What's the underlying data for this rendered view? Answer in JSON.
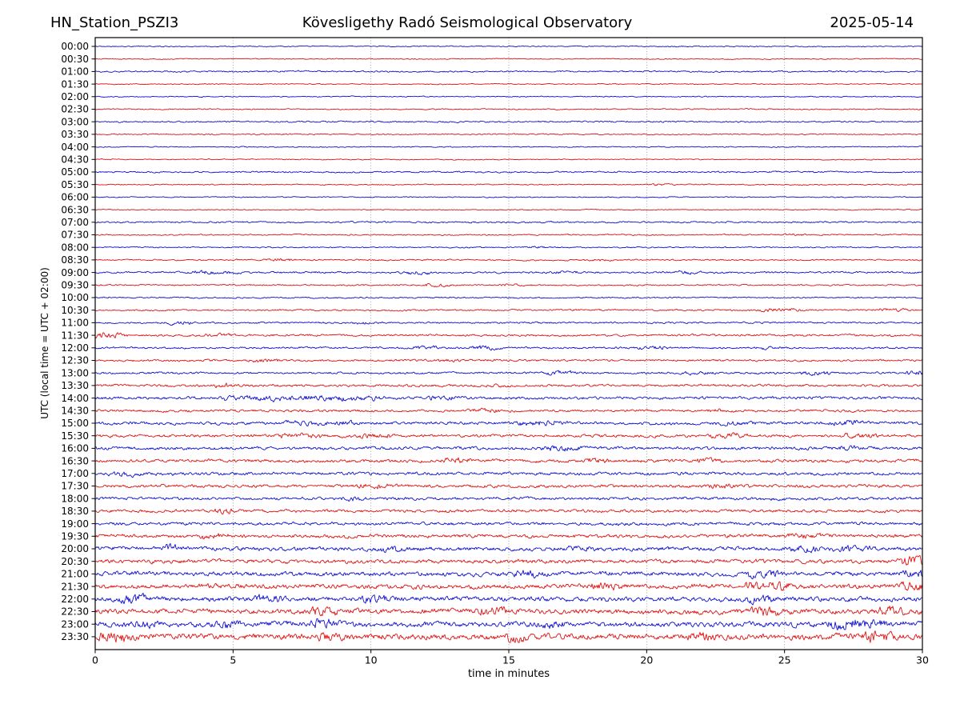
{
  "header": {
    "station": "HN_Station_PSZI3",
    "observatory": "Kövesligethy Radó Seismological Observatory",
    "date": "2025-05-14"
  },
  "chart_data": {
    "type": "line",
    "subtype": "helicorder-drum-plot",
    "title": "Kövesligethy Radó Seismological Observatory",
    "station": "HN_Station_PSZI3",
    "date": "2025-05-14",
    "xlabel": "time in minutes",
    "ylabel": "UTC (local time = UTC + 02:00)",
    "xlim": [
      0,
      30
    ],
    "x_ticks": [
      0,
      5,
      10,
      15,
      20,
      25,
      30
    ],
    "grid": "vertical-dotted-every-5-min",
    "legend": "none",
    "row_interval_minutes": 30,
    "trace_colors": {
      "blue": "#1010d0",
      "red": "#e01212"
    },
    "grid_color": "#8a8a8a",
    "frame_color": "#000000",
    "rows": [
      {
        "label": "00:00",
        "color": "blue",
        "amp": 0.5,
        "bursts": []
      },
      {
        "label": "00:30",
        "color": "red",
        "amp": 0.5,
        "bursts": []
      },
      {
        "label": "01:00",
        "color": "blue",
        "amp": 0.75,
        "bursts": []
      },
      {
        "label": "01:30",
        "color": "red",
        "amp": 0.5,
        "bursts": []
      },
      {
        "label": "02:00",
        "color": "blue",
        "amp": 0.5,
        "bursts": []
      },
      {
        "label": "02:30",
        "color": "red",
        "amp": 0.55,
        "bursts": []
      },
      {
        "label": "03:00",
        "color": "blue",
        "amp": 0.75,
        "bursts": []
      },
      {
        "label": "03:30",
        "color": "red",
        "amp": 0.6,
        "bursts": []
      },
      {
        "label": "04:00",
        "color": "blue",
        "amp": 0.5,
        "bursts": []
      },
      {
        "label": "04:30",
        "color": "red",
        "amp": 0.5,
        "bursts": []
      },
      {
        "label": "05:00",
        "color": "blue",
        "amp": 0.75,
        "bursts": []
      },
      {
        "label": "05:30",
        "color": "red",
        "amp": 0.55,
        "bursts": [
          [
            20.3,
            20.7,
            2.0
          ]
        ]
      },
      {
        "label": "06:00",
        "color": "blue",
        "amp": 0.5,
        "bursts": []
      },
      {
        "label": "06:30",
        "color": "red",
        "amp": 0.5,
        "bursts": []
      },
      {
        "label": "07:00",
        "color": "blue",
        "amp": 0.8,
        "bursts": []
      },
      {
        "label": "07:30",
        "color": "red",
        "amp": 0.6,
        "bursts": [
          [
            25.0,
            25.6,
            1.8
          ]
        ]
      },
      {
        "label": "08:00",
        "color": "blue",
        "amp": 0.6,
        "bursts": [
          [
            15.6,
            16.0,
            1.8
          ]
        ]
      },
      {
        "label": "08:30",
        "color": "red",
        "amp": 0.7,
        "bursts": [
          [
            6.2,
            7.0,
            2.2
          ],
          [
            17.8,
            18.5,
            1.6
          ]
        ]
      },
      {
        "label": "09:00",
        "color": "blue",
        "amp": 0.9,
        "bursts": [
          [
            3.6,
            5.0,
            2.2
          ],
          [
            11.2,
            12.0,
            2.2
          ],
          [
            16.6,
            17.4,
            1.8
          ],
          [
            21.0,
            21.8,
            2.3
          ]
        ]
      },
      {
        "label": "09:30",
        "color": "red",
        "amp": 0.7,
        "bursts": [
          [
            12.0,
            12.6,
            2.6
          ],
          [
            14.8,
            15.3,
            1.8
          ]
        ]
      },
      {
        "label": "10:00",
        "color": "blue",
        "amp": 0.7,
        "bursts": []
      },
      {
        "label": "10:30",
        "color": "red",
        "amp": 0.8,
        "bursts": [
          [
            24.2,
            25.4,
            2.3
          ],
          [
            28.5,
            29.4,
            2.3
          ]
        ]
      },
      {
        "label": "11:00",
        "color": "blue",
        "amp": 0.85,
        "bursts": [
          [
            2.6,
            3.3,
            2.2
          ],
          [
            9.3,
            9.9,
            1.7
          ]
        ]
      },
      {
        "label": "11:30",
        "color": "red",
        "amp": 1.0,
        "bursts": [
          [
            0.0,
            0.8,
            2.8
          ],
          [
            4.0,
            4.7,
            2.0
          ]
        ]
      },
      {
        "label": "12:00",
        "color": "blue",
        "amp": 0.9,
        "bursts": [
          [
            11.6,
            12.2,
            2.4
          ],
          [
            13.7,
            14.4,
            2.6
          ],
          [
            19.8,
            20.5,
            2.4
          ],
          [
            24.0,
            24.5,
            2.0
          ]
        ]
      },
      {
        "label": "12:30",
        "color": "red",
        "amp": 1.0,
        "bursts": [
          [
            5.6,
            6.6,
            1.9
          ],
          [
            12.4,
            13.0,
            1.7
          ]
        ]
      },
      {
        "label": "13:00",
        "color": "blue",
        "amp": 1.0,
        "bursts": [
          [
            16.4,
            17.2,
            2.2
          ],
          [
            21.4,
            22.1,
            1.9
          ],
          [
            25.7,
            26.4,
            2.3
          ],
          [
            29.5,
            30.0,
            2.4
          ]
        ]
      },
      {
        "label": "13:30",
        "color": "red",
        "amp": 1.2,
        "bursts": [
          [
            4.3,
            4.9,
            2.1
          ],
          [
            14.2,
            14.8,
            1.7
          ]
        ]
      },
      {
        "label": "14:00",
        "color": "blue",
        "amp": 1.4,
        "bursts": [
          [
            4.7,
            10.2,
            2.0
          ],
          [
            12.1,
            13.0,
            1.7
          ]
        ]
      },
      {
        "label": "14:30",
        "color": "red",
        "amp": 1.2,
        "bursts": [
          [
            13.6,
            14.5,
            1.8
          ],
          [
            22.0,
            22.6,
            1.6
          ]
        ]
      },
      {
        "label": "15:00",
        "color": "blue",
        "amp": 1.5,
        "bursts": [
          [
            7.0,
            9.2,
            1.9
          ],
          [
            15.4,
            16.7,
            2.0
          ],
          [
            22.6,
            23.6,
            1.7
          ],
          [
            26.6,
            27.6,
            1.9
          ]
        ]
      },
      {
        "label": "15:30",
        "color": "red",
        "amp": 1.4,
        "bursts": [
          [
            6.6,
            8.1,
            1.9
          ],
          [
            9.6,
            10.6,
            1.9
          ],
          [
            22.4,
            23.4,
            2.1
          ],
          [
            27.1,
            28.4,
            1.9
          ]
        ]
      },
      {
        "label": "16:00",
        "color": "blue",
        "amp": 1.5,
        "bursts": [
          [
            16.3,
            17.4,
            1.9
          ],
          [
            26.6,
            27.4,
            1.8
          ]
        ]
      },
      {
        "label": "16:30",
        "color": "red",
        "amp": 1.5,
        "bursts": [
          [
            12.7,
            13.4,
            2.1
          ],
          [
            17.9,
            18.5,
            1.9
          ],
          [
            21.9,
            22.5,
            1.9
          ]
        ]
      },
      {
        "label": "17:00",
        "color": "blue",
        "amp": 1.5,
        "bursts": [
          [
            0.5,
            1.6,
            1.7
          ]
        ]
      },
      {
        "label": "17:30",
        "color": "red",
        "amp": 1.5,
        "bursts": [
          [
            9.6,
            10.4,
            2.1
          ],
          [
            22.3,
            22.9,
            1.9
          ]
        ]
      },
      {
        "label": "18:00",
        "color": "blue",
        "amp": 1.4,
        "bursts": [
          [
            8.9,
            9.5,
            1.9
          ]
        ]
      },
      {
        "label": "18:30",
        "color": "red",
        "amp": 1.4,
        "bursts": [
          [
            4.4,
            4.9,
            2.3
          ]
        ]
      },
      {
        "label": "19:00",
        "color": "blue",
        "amp": 1.5,
        "bursts": []
      },
      {
        "label": "19:30",
        "color": "red",
        "amp": 1.7,
        "bursts": [
          [
            3.9,
            4.5,
            1.9
          ],
          [
            25.1,
            26.1,
            1.7
          ]
        ]
      },
      {
        "label": "20:00",
        "color": "blue",
        "amp": 1.9,
        "bursts": [
          [
            2.3,
            2.9,
            2.1
          ],
          [
            10.3,
            11.0,
            1.7
          ],
          [
            17.1,
            17.8,
            1.7
          ],
          [
            25.3,
            26.1,
            1.9
          ],
          [
            27.1,
            27.8,
            1.9
          ]
        ]
      },
      {
        "label": "20:30",
        "color": "red",
        "amp": 1.9,
        "bursts": [
          [
            29.2,
            30.0,
            2.6
          ]
        ]
      },
      {
        "label": "21:00",
        "color": "blue",
        "amp": 2.1,
        "bursts": [
          [
            15.3,
            16.0,
            2.1
          ],
          [
            23.6,
            24.6,
            1.7
          ],
          [
            29.4,
            30.0,
            2.3
          ]
        ]
      },
      {
        "label": "21:30",
        "color": "red",
        "amp": 2.2,
        "bursts": [
          [
            18.1,
            18.8,
            1.9
          ],
          [
            23.6,
            25.1,
            2.1
          ],
          [
            29.3,
            30.0,
            2.3
          ]
        ]
      },
      {
        "label": "22:00",
        "color": "blue",
        "amp": 2.3,
        "bursts": [
          [
            1.0,
            1.6,
            2.3
          ],
          [
            5.9,
            6.6,
            1.9
          ],
          [
            9.8,
            10.5,
            2.1
          ],
          [
            23.7,
            24.3,
            2.1
          ]
        ]
      },
      {
        "label": "22:30",
        "color": "red",
        "amp": 2.4,
        "bursts": [
          [
            7.9,
            8.6,
            2.1
          ],
          [
            14.0,
            14.7,
            1.9
          ],
          [
            23.9,
            24.6,
            2.3
          ],
          [
            28.5,
            29.1,
            1.9
          ]
        ]
      },
      {
        "label": "23:00",
        "color": "blue",
        "amp": 2.5,
        "bursts": [
          [
            1.4,
            2.0,
            2.1
          ],
          [
            4.4,
            5.0,
            1.9
          ],
          [
            7.9,
            8.5,
            2.1
          ],
          [
            16.1,
            16.7,
            1.9
          ],
          [
            26.7,
            28.3,
            2.3
          ]
        ]
      },
      {
        "label": "23:30",
        "color": "red",
        "amp": 2.8,
        "bursts": [
          [
            0.2,
            1.0,
            1.9
          ],
          [
            8.1,
            8.8,
            1.9
          ],
          [
            14.7,
            15.5,
            1.9
          ],
          [
            21.6,
            22.2,
            2.1
          ],
          [
            28.0,
            28.7,
            2.3
          ]
        ]
      }
    ]
  }
}
